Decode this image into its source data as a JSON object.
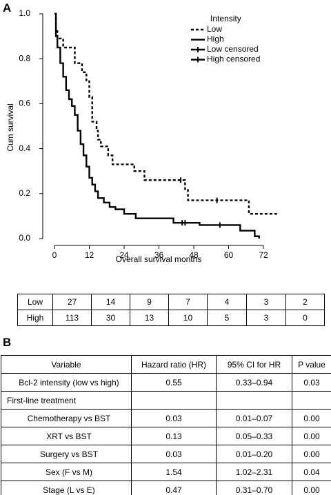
{
  "panel_labels": [
    "A",
    "B"
  ],
  "chart_data": {
    "type": "line",
    "step": "post",
    "y_label": "Cum survival",
    "x_label": "Overall survival months",
    "xlim": [
      0,
      72
    ],
    "ylim": [
      0,
      1
    ],
    "xticks": [
      0,
      12,
      24,
      36,
      48,
      60,
      72
    ],
    "yticks": [
      {
        "value": 0,
        "label": "0.0"
      },
      0.2,
      0.4,
      0.6,
      0.8,
      {
        "value": 1,
        "label": "1.0"
      }
    ],
    "legend_title": "Intensity",
    "legend_position": "upper right",
    "series": [
      {
        "name": "Low",
        "color": "#000000",
        "line_style": "dashed",
        "x": [
          0,
          0.5,
          1,
          3,
          7,
          9.5,
          11,
          12,
          13,
          14.5,
          15,
          16,
          18.5,
          20,
          27.5,
          31,
          45,
          46,
          67,
          77
        ],
        "values": [
          1.0,
          0.93,
          0.89,
          0.85,
          0.78,
          0.74,
          0.7,
          0.63,
          0.52,
          0.48,
          0.44,
          0.41,
          0.37,
          0.33,
          0.3,
          0.26,
          0.22,
          0.17,
          0.11,
          0.11
        ]
      },
      {
        "name": "High",
        "color": "#000000",
        "line_style": "solid",
        "x": [
          0,
          0.5,
          1,
          2,
          3,
          4,
          5,
          6,
          7,
          8,
          9,
          10,
          11,
          12,
          13,
          14,
          15,
          17,
          19,
          21,
          24,
          28,
          41,
          50,
          64,
          69,
          70.5
        ],
        "values": [
          1.0,
          0.9,
          0.85,
          0.78,
          0.72,
          0.66,
          0.62,
          0.59,
          0.55,
          0.48,
          0.42,
          0.37,
          0.32,
          0.27,
          0.24,
          0.21,
          0.18,
          0.16,
          0.14,
          0.13,
          0.11,
          0.09,
          0.07,
          0.06,
          0.035,
          0.01,
          0.0
        ]
      },
      {
        "name": "Low censored",
        "color": "#000000",
        "censored": true,
        "x": [
          43.5,
          56
        ],
        "values": [
          0.26,
          0.17
        ]
      },
      {
        "name": "High censored",
        "color": "#000000",
        "censored": true,
        "x": [
          44,
          45,
          57
        ],
        "values": [
          0.07,
          0.07,
          0.06
        ]
      }
    ]
  },
  "risk_table": {
    "rows": [
      [
        "Low",
        27,
        14,
        9,
        7,
        4,
        3,
        2
      ],
      [
        "High",
        113,
        30,
        13,
        10,
        5,
        3,
        0
      ]
    ]
  },
  "table": {
    "header": [
      "Variable",
      "Hazard ratio (HR)",
      "95% CI for HR",
      "P value"
    ],
    "rows": [
      [
        "Bcl-2 intensity (low vs high)",
        "0.55",
        "0.33–0.94",
        "0.03"
      ],
      [
        "First-line treatment"
      ],
      [
        "Chemotherapy vs BST",
        "0.03",
        "0.01–0.07",
        "0.00"
      ],
      [
        "XRT vs BST",
        "0.13",
        "0.05–0.33",
        "0.00"
      ],
      [
        "Surgery vs BST",
        "0.03",
        "0.01–0.20",
        "0.00"
      ],
      [
        "Sex (F vs M)",
        "1.54",
        "1.02–2.31",
        "0.04"
      ],
      [
        "Stage (L vs E)",
        "0.47",
        "0.31–0.70",
        "0.00"
      ]
    ]
  }
}
